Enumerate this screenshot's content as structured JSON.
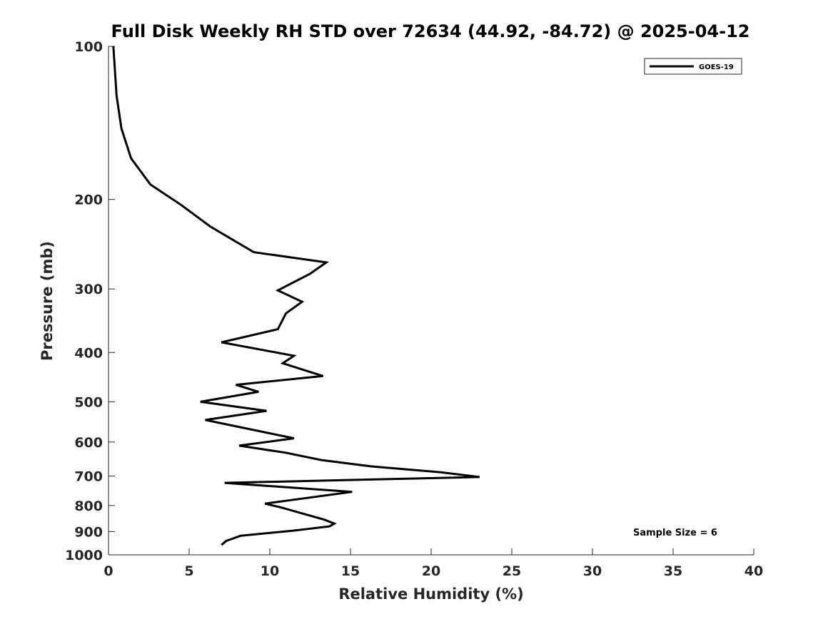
{
  "chart_data": {
    "type": "line",
    "title": "Full Disk Weekly RH STD over 72634 (44.92, -84.72) @ 2025-04-12",
    "xlabel": "Relative Humidity (%)",
    "ylabel": "Pressure (mb)",
    "xlim": [
      0,
      40
    ],
    "ylim": [
      100,
      1000
    ],
    "yscale": "log",
    "y_reversed": true,
    "xticks": [
      0,
      5,
      10,
      15,
      20,
      25,
      30,
      35,
      40
    ],
    "yticks": [
      100,
      200,
      300,
      400,
      500,
      600,
      700,
      800,
      900,
      1000
    ],
    "grid": false,
    "legend_position": "top-right",
    "series": [
      {
        "name": "GOES-19",
        "color": "#000000",
        "x": [
          0.3,
          0.5,
          0.8,
          1.4,
          2.6,
          4.5,
          6.3,
          9.0,
          13.5,
          12.5,
          10.5,
          12.0,
          11.0,
          10.5,
          7.0,
          11.5,
          10.8,
          13.3,
          7.9,
          9.3,
          5.7,
          9.8,
          6.0,
          9.2,
          11.5,
          8.1,
          11.0,
          13.2,
          16.3,
          20.6,
          23.0,
          7.2,
          15.1,
          9.7,
          10.7,
          13.4,
          14.0,
          13.7,
          11.5,
          8.2,
          7.3,
          7.0
        ],
        "y": [
          100,
          125,
          145,
          166,
          187,
          205,
          226,
          254,
          266,
          280,
          302,
          318,
          335,
          360,
          382,
          406,
          420,
          445,
          463,
          478,
          500,
          521,
          543,
          570,
          590,
          610,
          630,
          651,
          670,
          688,
          703,
          722,
          752,
          793,
          807,
          853,
          868,
          879,
          896,
          917,
          939,
          956
        ]
      }
    ],
    "annotations": [
      "Sample Size = 6"
    ]
  }
}
